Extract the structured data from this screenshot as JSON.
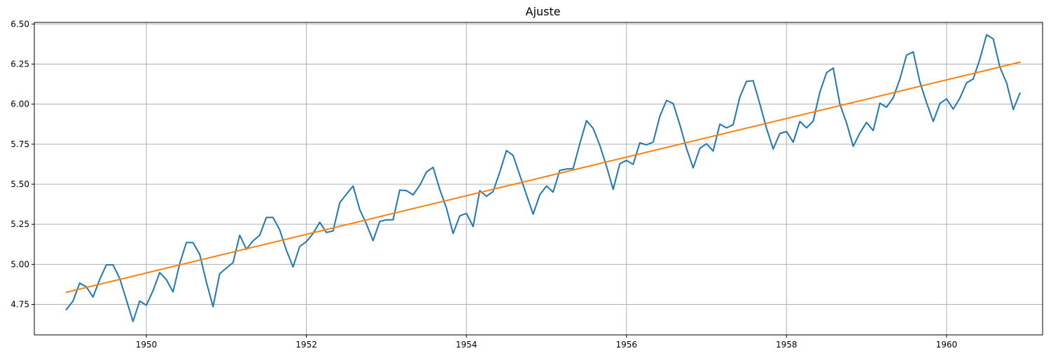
{
  "chart_data": {
    "type": "line",
    "title": "Ajuste",
    "xlabel": "",
    "ylabel": "",
    "xlim": [
      1948.6,
      1961.2
    ],
    "ylim": [
      4.56,
      6.51
    ],
    "grid": true,
    "x_ticks": [
      1950,
      1952,
      1954,
      1956,
      1958,
      1960
    ],
    "x_tick_labels": [
      "1950",
      "1952",
      "1954",
      "1956",
      "1958",
      "1960"
    ],
    "y_ticks": [
      4.75,
      5.0,
      5.25,
      5.5,
      5.75,
      6.0,
      6.25,
      6.5
    ],
    "y_tick_labels": [
      "4.75",
      "5.00",
      "5.25",
      "5.50",
      "5.75",
      "6.00",
      "6.25",
      "6.50"
    ],
    "x_start": "1949-01",
    "x_step": "1 month",
    "series": [
      {
        "color": "#1f77b4",
        "values": [
          4.718,
          4.771,
          4.883,
          4.86,
          4.796,
          4.905,
          4.997,
          4.997,
          4.913,
          4.779,
          4.644,
          4.771,
          4.745,
          4.836,
          4.949,
          4.905,
          4.828,
          5.004,
          5.136,
          5.136,
          5.063,
          4.89,
          4.736,
          4.942,
          4.977,
          5.011,
          5.182,
          5.094,
          5.147,
          5.182,
          5.293,
          5.293,
          5.215,
          5.088,
          4.984,
          5.112,
          5.142,
          5.193,
          5.263,
          5.199,
          5.209,
          5.384,
          5.438,
          5.489,
          5.342,
          5.252,
          5.148,
          5.268,
          5.278,
          5.278,
          5.464,
          5.46,
          5.434,
          5.493,
          5.576,
          5.606,
          5.468,
          5.352,
          5.193,
          5.303,
          5.318,
          5.236,
          5.46,
          5.425,
          5.455,
          5.576,
          5.71,
          5.68,
          5.557,
          5.434,
          5.313,
          5.434,
          5.489,
          5.451,
          5.587,
          5.595,
          5.598,
          5.753,
          5.897,
          5.849,
          5.743,
          5.613,
          5.468,
          5.628,
          5.649,
          5.624,
          5.759,
          5.746,
          5.763,
          5.924,
          6.023,
          6.004,
          5.872,
          5.724,
          5.602,
          5.724,
          5.753,
          5.707,
          5.875,
          5.852,
          5.872,
          6.045,
          6.142,
          6.146,
          6.001,
          5.849,
          5.72,
          5.817,
          5.829,
          5.762,
          5.892,
          5.852,
          5.894,
          6.075,
          6.196,
          6.225,
          6.001,
          5.883,
          5.737,
          5.82,
          5.886,
          5.835,
          6.006,
          5.981,
          6.04,
          6.157,
          6.306,
          6.326,
          6.138,
          6.009,
          5.892,
          6.004,
          6.033,
          5.969,
          6.038,
          6.133,
          6.157,
          6.282,
          6.433,
          6.407,
          6.23,
          6.133,
          5.966,
          6.068
        ]
      },
      {
        "color": "#ff7f0e",
        "x": [
          "1949-01",
          "1960-12"
        ],
        "values": [
          4.826,
          6.262
        ]
      }
    ]
  }
}
